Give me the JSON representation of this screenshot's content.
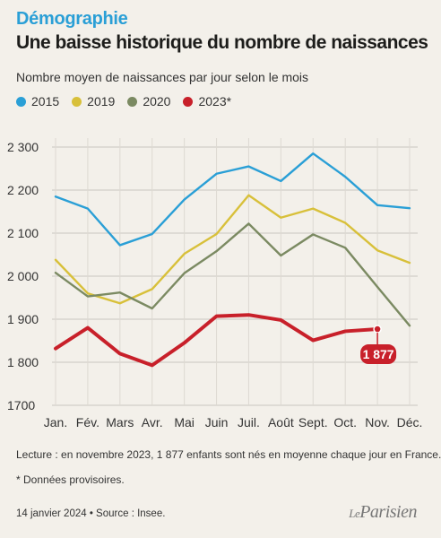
{
  "header": {
    "kicker": "Démographie",
    "title": "Une baisse historique du nombre de naissances",
    "subtitle": "Nombre moyen de naissances par jour selon le mois"
  },
  "legend": [
    {
      "label": "2015",
      "color": "#2a9fd6"
    },
    {
      "label": "2019",
      "color": "#d8c03a"
    },
    {
      "label": "2020",
      "color": "#7b8a62"
    },
    {
      "label": "2023*",
      "color": "#c8202a"
    }
  ],
  "chart_data": {
    "type": "line",
    "categories": [
      "Jan.",
      "Fév.",
      "Mars",
      "Avr.",
      "Mai",
      "Juin",
      "Juil.",
      "Août",
      "Sept.",
      "Oct.",
      "Nov.",
      "Déc."
    ],
    "ylim": [
      1700,
      2300
    ],
    "yticks": [
      1700,
      1800,
      1900,
      2000,
      2100,
      2200,
      2300
    ],
    "ytick_labels": [
      "1700",
      "1 800",
      "1 900",
      "2 000",
      "2 100",
      "2 200",
      "2 300"
    ],
    "grid": true,
    "series": [
      {
        "name": "2015",
        "color": "#2a9fd6",
        "values": [
          2185,
          2157,
          2072,
          2098,
          2178,
          2238,
          2255,
          2221,
          2285,
          2231,
          2165,
          2158
        ]
      },
      {
        "name": "2019",
        "color": "#d8c03a",
        "values": [
          2038,
          1960,
          1937,
          1970,
          2052,
          2098,
          2188,
          2136,
          2157,
          2124,
          2060,
          2031
        ]
      },
      {
        "name": "2020",
        "color": "#7b8a62",
        "values": [
          2008,
          1953,
          1962,
          1925,
          2007,
          2058,
          2122,
          2048,
          2097,
          2066,
          1975,
          1885
        ]
      },
      {
        "name": "2023*",
        "color": "#c8202a",
        "values": [
          1832,
          1880,
          1820,
          1793,
          1845,
          1907,
          1910,
          1898,
          1851,
          1872,
          1877,
          null
        ]
      }
    ],
    "annotation": {
      "series": "2023*",
      "category": "Nov.",
      "label": "1 877"
    }
  },
  "footer": {
    "note": "Lecture : en novembre 2023, 1 877 enfants sont nés en moyenne chaque jour en France.",
    "footnote": "* Données provisoires.",
    "credit": "14 janvier 2024 • Source : Insee.",
    "logo_prefix": "Le",
    "logo_name": "Parisien"
  }
}
